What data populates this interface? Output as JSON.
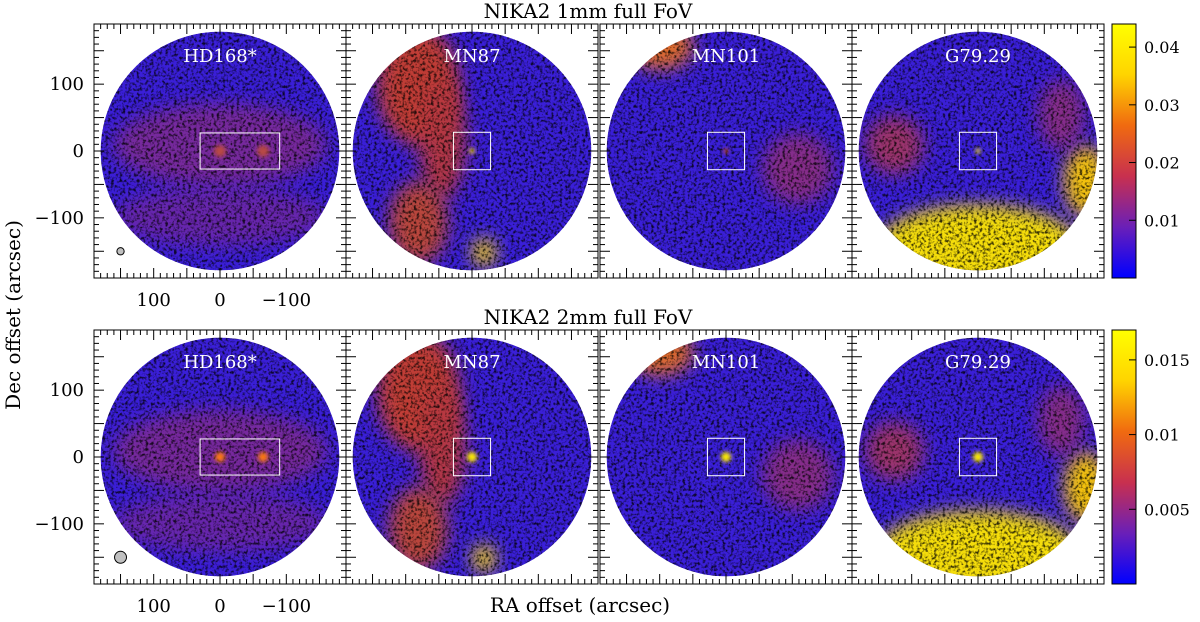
{
  "figure": {
    "ylabel": "Dec offset (arcsec)",
    "xlabel": "RA offset (arcsec)"
  },
  "chart_data": [
    {
      "type": "heatmap",
      "title": "NIKA2 1mm full FoV",
      "panels": [
        "HD168*",
        "MN87",
        "MN101",
        "G79.29"
      ],
      "x_ticks": [
        100,
        0,
        -100
      ],
      "x_tick_labels": [
        "100",
        "0",
        "−100"
      ],
      "y_ticks": [
        100,
        0,
        -100
      ],
      "y_tick_labels": [
        "100",
        "0",
        "−100"
      ],
      "xlim": [
        190,
        -190
      ],
      "ylim": [
        -190,
        190
      ],
      "colorbar": {
        "ticks": [
          0.04,
          0.03,
          0.02,
          0.01
        ],
        "tick_labels": [
          "0.04",
          "0.03",
          "0.02",
          "0.01"
        ],
        "range": [
          0,
          0.044
        ],
        "colormap": [
          "#0000ff",
          "#6a1fb8",
          "#c8304f",
          "#f06a10",
          "#ffd400",
          "#ffff00"
        ]
      },
      "fov_radius_arcsec": 180,
      "box_HD168": {
        "x": [
          30,
          -90
        ],
        "y": [
          -27,
          27
        ]
      },
      "box_others": {
        "half_width_arcsec": 28
      },
      "beam_fwhm_arcsec": 11
    },
    {
      "type": "heatmap",
      "title": "NIKA2 2mm full FoV",
      "panels": [
        "HD168*",
        "MN87",
        "MN101",
        "G79.29"
      ],
      "x_ticks": [
        100,
        0,
        -100
      ],
      "x_tick_labels": [
        "100",
        "0",
        "−100"
      ],
      "y_ticks": [
        100,
        0,
        -100
      ],
      "y_tick_labels": [
        "100",
        "0",
        "−100"
      ],
      "xlim": [
        190,
        -190
      ],
      "ylim": [
        -190,
        190
      ],
      "colorbar": {
        "ticks": [
          0.015,
          0.01,
          0.005
        ],
        "tick_labels": [
          "0.015",
          "0.01",
          "0.005"
        ],
        "range": [
          0,
          0.017
        ],
        "colormap": [
          "#0000ff",
          "#6a1fb8",
          "#c8304f",
          "#f06a10",
          "#ffd400",
          "#ffff00"
        ]
      },
      "fov_radius_arcsec": 180,
      "box_HD168": {
        "x": [
          30,
          -90
        ],
        "y": [
          -27,
          27
        ]
      },
      "box_others": {
        "half_width_arcsec": 28
      },
      "beam_fwhm_arcsec": 18
    }
  ]
}
